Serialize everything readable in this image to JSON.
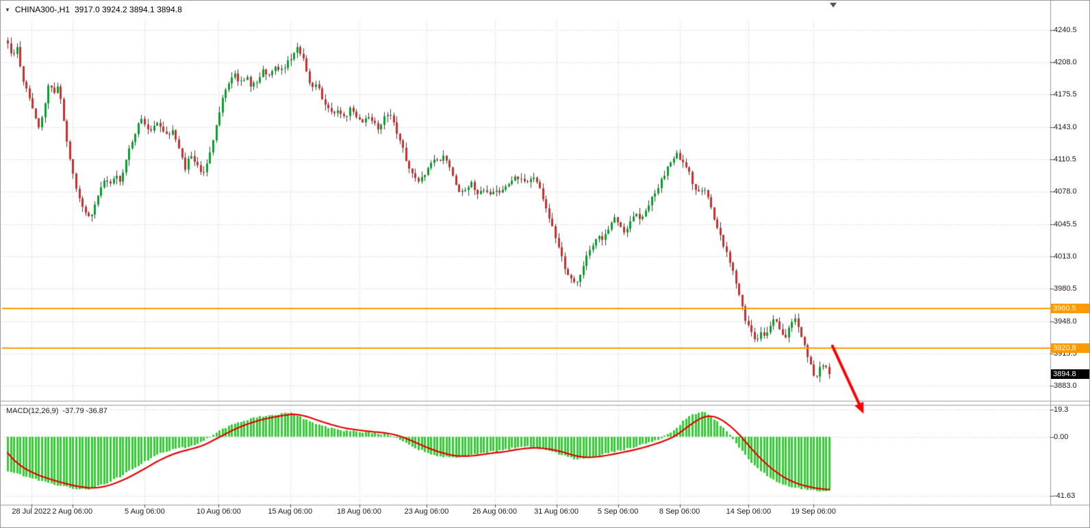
{
  "window": {
    "symbol_dropdown_icon": "▼",
    "symbol_label": "CHINA300-,H1",
    "ohlc_label": "3917.0 3924.2 3894.1 3894.8",
    "macd_label": "MACD(12,26,9)",
    "macd_values_label": "-37.79 -36.87"
  },
  "colors": {
    "background": "#ffffff",
    "grid": "#c6c6c6",
    "candle_up": "#00A32A",
    "candle_down": "#CB2C2C",
    "wick": "#3a3a3a",
    "macd_bar": "#33CC33",
    "signal_line": "#E60000",
    "h_line": "#FF9900",
    "arrow": "#FF0000",
    "divider": "#9a9a9a",
    "axis_text": "#1a1a1a",
    "last_tag_bg": "#000000",
    "tag_text": "#ffffff"
  },
  "chart_data": [
    {
      "type": "candlestick",
      "symbol": "CHINA300-",
      "timeframe": "H1",
      "ohlc": {
        "open": 3917.0,
        "high": 3924.2,
        "low": 3894.1,
        "close": 3894.8
      },
      "ylim": [
        3868,
        4252
      ],
      "y_ticks": [
        {
          "v": 4240.5,
          "label": "4240.5"
        },
        {
          "v": 4208.0,
          "label": "4208.0"
        },
        {
          "v": 4175.5,
          "label": "4175.5"
        },
        {
          "v": 4143.0,
          "label": "4143.0"
        },
        {
          "v": 4110.5,
          "label": "4110.5"
        },
        {
          "v": 4078.0,
          "label": "4078.0"
        },
        {
          "v": 4045.5,
          "label": "4045.5"
        },
        {
          "v": 4013.0,
          "label": "4013.0"
        },
        {
          "v": 3980.5,
          "label": "3980.5"
        },
        {
          "v": 3948.0,
          "label": "3948.0"
        },
        {
          "v": 3915.5,
          "label": "3915.5"
        },
        {
          "v": 3883.0,
          "label": "3883.0"
        }
      ],
      "x_ticks": [
        {
          "t": 0.029,
          "label": "28 Jul 2022"
        },
        {
          "t": 0.079,
          "label": "2 Aug 06:00"
        },
        {
          "t": 0.167,
          "label": "5 Aug 06:00"
        },
        {
          "t": 0.257,
          "label": "10 Aug 06:00"
        },
        {
          "t": 0.344,
          "label": "15 Aug 06:00"
        },
        {
          "t": 0.428,
          "label": "18 Aug 06:00"
        },
        {
          "t": 0.51,
          "label": "23 Aug 06:00"
        },
        {
          "t": 0.593,
          "label": "26 Aug 06:00"
        },
        {
          "t": 0.668,
          "label": "31 Aug 06:00"
        },
        {
          "t": 0.743,
          "label": "5 Sep 06:00"
        },
        {
          "t": 0.818,
          "label": "8 Sep 06:00"
        },
        {
          "t": 0.902,
          "label": "14 Sep 06:00"
        },
        {
          "t": 0.981,
          "label": "19 Sep 06:00"
        }
      ],
      "candle_count": 265,
      "seed": 12,
      "noise": 5,
      "wick": 6,
      "last_price": 3894.8,
      "last_price_label": "3894.8",
      "h_lines": [
        {
          "price": 3960.5,
          "label": "3960.5"
        },
        {
          "price": 3920.8,
          "label": "3920.8"
        }
      ],
      "trend_arrow": {
        "t1": 1.004,
        "price1": 3923,
        "t2": 1.042,
        "price2": 3855
      },
      "price_path": [
        [
          0.0,
          4228
        ],
        [
          0.006,
          4214
        ],
        [
          0.012,
          4222
        ],
        [
          0.017,
          4196
        ],
        [
          0.023,
          4180
        ],
        [
          0.029,
          4165
        ],
        [
          0.035,
          4148
        ],
        [
          0.04,
          4143
        ],
        [
          0.046,
          4170
        ],
        [
          0.05,
          4188
        ],
        [
          0.056,
          4175
        ],
        [
          0.062,
          4186
        ],
        [
          0.067,
          4152
        ],
        [
          0.073,
          4125
        ],
        [
          0.079,
          4096
        ],
        [
          0.085,
          4076
        ],
        [
          0.092,
          4062
        ],
        [
          0.1,
          4052
        ],
        [
          0.106,
          4066
        ],
        [
          0.112,
          4080
        ],
        [
          0.118,
          4092
        ],
        [
          0.124,
          4084
        ],
        [
          0.131,
          4096
        ],
        [
          0.137,
          4088
        ],
        [
          0.143,
          4108
        ],
        [
          0.15,
          4126
        ],
        [
          0.156,
          4140
        ],
        [
          0.162,
          4152
        ],
        [
          0.168,
          4146
        ],
        [
          0.174,
          4138
        ],
        [
          0.181,
          4150
        ],
        [
          0.187,
          4142
        ],
        [
          0.193,
          4134
        ],
        [
          0.2,
          4140
        ],
        [
          0.208,
          4124
        ],
        [
          0.216,
          4102
        ],
        [
          0.223,
          4117
        ],
        [
          0.23,
          4106
        ],
        [
          0.237,
          4094
        ],
        [
          0.243,
          4108
        ],
        [
          0.25,
          4132
        ],
        [
          0.256,
          4152
        ],
        [
          0.262,
          4172
        ],
        [
          0.269,
          4188
        ],
        [
          0.276,
          4196
        ],
        [
          0.283,
          4186
        ],
        [
          0.29,
          4194
        ],
        [
          0.297,
          4183
        ],
        [
          0.304,
          4191
        ],
        [
          0.311,
          4199
        ],
        [
          0.318,
          4195
        ],
        [
          0.325,
          4204
        ],
        [
          0.332,
          4199
        ],
        [
          0.339,
          4206
        ],
        [
          0.346,
          4212
        ],
        [
          0.353,
          4222
        ],
        [
          0.359,
          4215
        ],
        [
          0.365,
          4194
        ],
        [
          0.371,
          4181
        ],
        [
          0.377,
          4190
        ],
        [
          0.383,
          4170
        ],
        [
          0.389,
          4161
        ],
        [
          0.396,
          4157
        ],
        [
          0.403,
          4162
        ],
        [
          0.41,
          4151
        ],
        [
          0.417,
          4163
        ],
        [
          0.423,
          4156
        ],
        [
          0.43,
          4147
        ],
        [
          0.437,
          4154
        ],
        [
          0.444,
          4149
        ],
        [
          0.451,
          4141
        ],
        [
          0.458,
          4153
        ],
        [
          0.464,
          4159
        ],
        [
          0.471,
          4144
        ],
        [
          0.478,
          4128
        ],
        [
          0.484,
          4112
        ],
        [
          0.491,
          4098
        ],
        [
          0.498,
          4087
        ],
        [
          0.504,
          4091
        ],
        [
          0.511,
          4103
        ],
        [
          0.518,
          4113
        ],
        [
          0.524,
          4109
        ],
        [
          0.531,
          4114
        ],
        [
          0.538,
          4101
        ],
        [
          0.545,
          4088
        ],
        [
          0.551,
          4077
        ],
        [
          0.558,
          4081
        ],
        [
          0.565,
          4087
        ],
        [
          0.571,
          4077
        ],
        [
          0.578,
          4081
        ],
        [
          0.585,
          4076
        ],
        [
          0.592,
          4081
        ],
        [
          0.599,
          4077
        ],
        [
          0.605,
          4081
        ],
        [
          0.612,
          4087
        ],
        [
          0.619,
          4094
        ],
        [
          0.625,
          4089
        ],
        [
          0.632,
          4086
        ],
        [
          0.639,
          4094
        ],
        [
          0.645,
          4089
        ],
        [
          0.652,
          4071
        ],
        [
          0.659,
          4052
        ],
        [
          0.665,
          4036
        ],
        [
          0.672,
          4017
        ],
        [
          0.678,
          4001
        ],
        [
          0.685,
          3990
        ],
        [
          0.691,
          3984
        ],
        [
          0.698,
          3999
        ],
        [
          0.705,
          4014
        ],
        [
          0.711,
          4024
        ],
        [
          0.718,
          4034
        ],
        [
          0.724,
          4029
        ],
        [
          0.731,
          4040
        ],
        [
          0.738,
          4051
        ],
        [
          0.744,
          4046
        ],
        [
          0.751,
          4036
        ],
        [
          0.757,
          4046
        ],
        [
          0.764,
          4056
        ],
        [
          0.771,
          4051
        ],
        [
          0.777,
          4061
        ],
        [
          0.784,
          4071
        ],
        [
          0.79,
          4081
        ],
        [
          0.797,
          4091
        ],
        [
          0.803,
          4101
        ],
        [
          0.81,
          4111
        ],
        [
          0.816,
          4116
        ],
        [
          0.822,
          4106
        ],
        [
          0.829,
          4100
        ],
        [
          0.835,
          4082
        ],
        [
          0.841,
          4076
        ],
        [
          0.848,
          4081
        ],
        [
          0.854,
          4071
        ],
        [
          0.86,
          4052
        ],
        [
          0.867,
          4036
        ],
        [
          0.873,
          4021
        ],
        [
          0.879,
          4006
        ],
        [
          0.886,
          3988
        ],
        [
          0.892,
          3968
        ],
        [
          0.898,
          3950
        ],
        [
          0.904,
          3938
        ],
        [
          0.91,
          3929
        ],
        [
          0.916,
          3936
        ],
        [
          0.922,
          3931
        ],
        [
          0.928,
          3944
        ],
        [
          0.934,
          3951
        ],
        [
          0.94,
          3938
        ],
        [
          0.946,
          3930
        ],
        [
          0.952,
          3944
        ],
        [
          0.958,
          3952
        ],
        [
          0.964,
          3938
        ],
        [
          0.97,
          3922
        ],
        [
          0.976,
          3906
        ],
        [
          0.982,
          3889
        ],
        [
          0.988,
          3899
        ],
        [
          0.994,
          3906
        ],
        [
          1.0,
          3895
        ]
      ]
    },
    {
      "type": "macd",
      "params": "12,26,9",
      "macd_value": -37.79,
      "signal_value": -36.87,
      "ylim": [
        -48,
        22
      ],
      "y_ticks": [
        {
          "v": 19.3,
          "label": "19.3"
        },
        {
          "v": 0,
          "label": "0.00"
        },
        {
          "v": -41.63,
          "label": "-41.63"
        }
      ],
      "signal_ema": 9,
      "signal_start": -8,
      "macd_path": [
        [
          0.0,
          -24
        ],
        [
          0.02,
          -28
        ],
        [
          0.04,
          -31
        ],
        [
          0.06,
          -34
        ],
        [
          0.08,
          -36.5
        ],
        [
          0.1,
          -37
        ],
        [
          0.12,
          -33
        ],
        [
          0.14,
          -27
        ],
        [
          0.16,
          -20
        ],
        [
          0.18,
          -13
        ],
        [
          0.2,
          -9
        ],
        [
          0.22,
          -7
        ],
        [
          0.235,
          -4
        ],
        [
          0.25,
          2
        ],
        [
          0.27,
          8
        ],
        [
          0.29,
          12
        ],
        [
          0.31,
          14.5
        ],
        [
          0.33,
          16
        ],
        [
          0.345,
          17
        ],
        [
          0.36,
          13
        ],
        [
          0.375,
          9
        ],
        [
          0.39,
          6.5
        ],
        [
          0.405,
          4.5
        ],
        [
          0.42,
          4
        ],
        [
          0.435,
          3
        ],
        [
          0.45,
          2.5
        ],
        [
          0.465,
          1
        ],
        [
          0.48,
          -3
        ],
        [
          0.5,
          -9
        ],
        [
          0.52,
          -13
        ],
        [
          0.54,
          -15
        ],
        [
          0.56,
          -13.5
        ],
        [
          0.58,
          -11
        ],
        [
          0.6,
          -10
        ],
        [
          0.615,
          -8
        ],
        [
          0.63,
          -7
        ],
        [
          0.645,
          -8
        ],
        [
          0.66,
          -10
        ],
        [
          0.675,
          -13
        ],
        [
          0.69,
          -16
        ],
        [
          0.705,
          -15
        ],
        [
          0.72,
          -13
        ],
        [
          0.735,
          -11
        ],
        [
          0.75,
          -9
        ],
        [
          0.765,
          -7
        ],
        [
          0.78,
          -4
        ],
        [
          0.795,
          -1
        ],
        [
          0.81,
          4
        ],
        [
          0.822,
          11
        ],
        [
          0.834,
          16
        ],
        [
          0.845,
          18
        ],
        [
          0.856,
          15
        ],
        [
          0.866,
          9
        ],
        [
          0.876,
          3
        ],
        [
          0.886,
          -4
        ],
        [
          0.896,
          -12
        ],
        [
          0.906,
          -19
        ],
        [
          0.918,
          -25
        ],
        [
          0.93,
          -30
        ],
        [
          0.942,
          -33.5
        ],
        [
          0.954,
          -35.5
        ],
        [
          0.966,
          -36.8
        ],
        [
          0.978,
          -37.5
        ],
        [
          0.99,
          -38
        ],
        [
          1.0,
          -37.79
        ]
      ]
    }
  ]
}
